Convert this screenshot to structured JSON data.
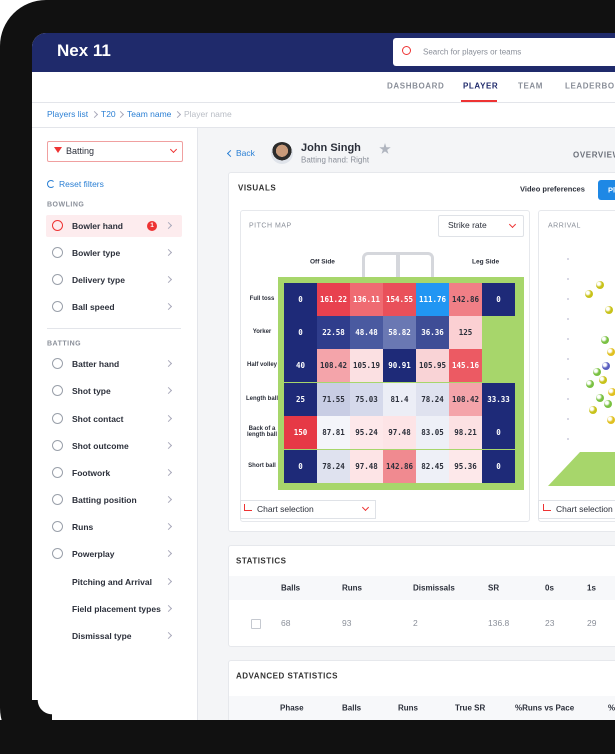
{
  "header": {
    "brand": "Nex 11",
    "search_placeholder": "Search for players or teams"
  },
  "nav": [
    "DASHBOARD",
    "PLAYER",
    "TEAM",
    "LEADERBOA"
  ],
  "breadcrumb": [
    "Players list",
    "T20",
    "Team name",
    "Player name"
  ],
  "sidebar": {
    "dropdown": "Batting",
    "reset": "Reset filters",
    "bowling_title": "BOWLING",
    "bowling_items": [
      "Bowler hand",
      "Bowler type",
      "Delivery type",
      "Ball speed"
    ],
    "badge": "1",
    "batting_title": "BATTING",
    "batting_items": [
      "Batter hand",
      "Shot type",
      "Shot contact",
      "Shot outcome",
      "Footwork",
      "Batting position",
      "Runs",
      "Powerplay",
      "Pitching and Arrival",
      "Field placement types",
      "Dismissal type"
    ]
  },
  "player": {
    "back": "Back",
    "name": "John Singh",
    "hand": "Batting hand: Right",
    "tab": "OVERVIEW"
  },
  "visuals": {
    "title": "VISUALS",
    "video": "Video preferences",
    "button": "Pl",
    "pitch_map": {
      "title": "PITCH MAP",
      "metric": "Strike rate",
      "off_side": "Off Side",
      "leg_side": "Leg Side",
      "rows": [
        "Full toss",
        "Yorker",
        "Half volley",
        "Length ball",
        "Back of a length ball",
        "Short ball"
      ],
      "cells": [
        [
          "0",
          "161.22",
          "136.11",
          "154.55",
          "111.76",
          "142.86",
          "0"
        ],
        [
          "0",
          "22.58",
          "48.48",
          "58.82",
          "36.36",
          "125",
          null
        ],
        [
          "40",
          "108.42",
          "105.19",
          "90.91",
          "105.95",
          "145.16",
          null
        ],
        [
          "25",
          "71.55",
          "75.03",
          "81.4",
          "78.24",
          "108.42",
          "33.33"
        ],
        [
          "150",
          "87.81",
          "95.24",
          "97.48",
          "83.05",
          "98.21",
          "0"
        ],
        [
          "0",
          "78.24",
          "97.48",
          "142.86",
          "82.45",
          "95.36",
          "0"
        ]
      ],
      "colors": [
        [
          "#1e2a78",
          "#e8414f",
          "#ef6b72",
          "#e9505a",
          "#2196f3",
          "#f07f86",
          "#1e2a78"
        ],
        [
          "#1e2a78",
          "#2f3d8c",
          "#4a5aa0",
          "#6a78b3",
          "#3e4d96",
          "#fbd0d3",
          null
        ],
        [
          "#1e2a78",
          "#f4a4aa",
          "#fbe0e2",
          "#1e2a78",
          "#f9d3d6",
          "#ec5a63",
          null
        ],
        [
          "#1e2a78",
          "#c8cde4",
          "#d5d9eb",
          "#eceef6",
          "#dfe2ef",
          "#f4a4aa",
          "#1e2a78"
        ],
        [
          "#e63946",
          "#f4f5fa",
          "#fde8ea",
          "#fde4e6",
          "#eef0f7",
          "#fce1e3",
          "#1e2a78"
        ],
        [
          "#1e2a78",
          "#dfe2ef",
          "#fde4e6",
          "#f08a90",
          "#eef0f7",
          "#fde8ea",
          "#1e2a78"
        ]
      ],
      "chart_selection": "Chart selection"
    },
    "arrival": {
      "title": "ARRIVAL",
      "chart_selection": "Chart selection"
    }
  },
  "statistics": {
    "title": "STATISTICS",
    "headers": [
      "Balls",
      "Runs",
      "Dismissals",
      "SR",
      "0s",
      "1s"
    ],
    "values": [
      "68",
      "93",
      "2",
      "136.8",
      "23",
      "29"
    ]
  },
  "advanced": {
    "title": "ADVANCED STATISTICS",
    "headers": [
      "Phase",
      "Balls",
      "Runs",
      "True SR",
      "%Runs vs Pace",
      "%"
    ]
  }
}
